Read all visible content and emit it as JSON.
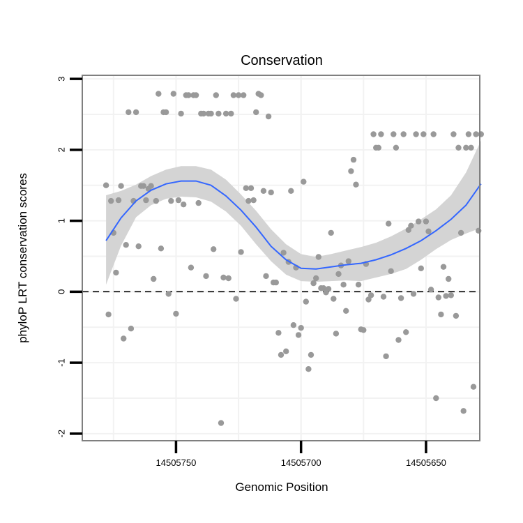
{
  "chart_data": {
    "type": "scatter",
    "title": "Conservation",
    "xlabel": "Genomic Position",
    "ylabel": "phyloP LRT conservation scores",
    "x_reversed": true,
    "xlim": [
      14505787.5,
      14505628.5
    ],
    "ylim": [
      -2.1,
      3.05
    ],
    "x_ticks": [
      14505750,
      14505700,
      14505650
    ],
    "x_tick_labels": [
      "14505750",
      "14505700",
      "14505650"
    ],
    "y_ticks": [
      -2,
      -1,
      0,
      1,
      2,
      3
    ],
    "y_tick_labels": [
      "-2",
      "-1",
      "0",
      "1",
      "2",
      "3"
    ],
    "reference_line": {
      "y": 0,
      "style": "dashed"
    },
    "grid": true,
    "colors": {
      "points": "#999999",
      "smooth_line": "#3366FF",
      "confidence_band": "#D4D4D4",
      "grid": "#F2F2F2",
      "frame": "#7F7F7F",
      "axis_line": "#000000"
    },
    "points": [
      {
        "x": 14505778,
        "y": 1.5
      },
      {
        "x": 14505777,
        "y": -0.32
      },
      {
        "x": 14505776,
        "y": 1.28
      },
      {
        "x": 14505775,
        "y": 0.83
      },
      {
        "x": 14505774,
        "y": 0.27
      },
      {
        "x": 14505773,
        "y": 1.29
      },
      {
        "x": 14505772,
        "y": 1.49
      },
      {
        "x": 14505771,
        "y": -0.66
      },
      {
        "x": 14505770,
        "y": 0.66
      },
      {
        "x": 14505769,
        "y": 2.53
      },
      {
        "x": 14505768,
        "y": -0.52
      },
      {
        "x": 14505767,
        "y": 1.28
      },
      {
        "x": 14505766,
        "y": 2.53
      },
      {
        "x": 14505765,
        "y": 0.64
      },
      {
        "x": 14505764,
        "y": 1.49
      },
      {
        "x": 14505763,
        "y": 1.49
      },
      {
        "x": 14505762,
        "y": 1.29
      },
      {
        "x": 14505761,
        "y": 1.45
      },
      {
        "x": 14505760,
        "y": 1.49
      },
      {
        "x": 14505759,
        "y": 0.18
      },
      {
        "x": 14505758,
        "y": 1.28
      },
      {
        "x": 14505757,
        "y": 2.79
      },
      {
        "x": 14505756,
        "y": 0.61
      },
      {
        "x": 14505755,
        "y": 2.53
      },
      {
        "x": 14505754,
        "y": 2.53
      },
      {
        "x": 14505753,
        "y": -0.03
      },
      {
        "x": 14505752,
        "y": 1.28
      },
      {
        "x": 14505751,
        "y": 2.79
      },
      {
        "x": 14505750,
        "y": -0.31
      },
      {
        "x": 14505749,
        "y": 1.29
      },
      {
        "x": 14505748,
        "y": 2.51
      },
      {
        "x": 14505747,
        "y": 1.23
      },
      {
        "x": 14505746,
        "y": 2.77
      },
      {
        "x": 14505745,
        "y": 2.77
      },
      {
        "x": 14505744,
        "y": 0.34
      },
      {
        "x": 14505743,
        "y": 2.77
      },
      {
        "x": 14505742,
        "y": 2.77
      },
      {
        "x": 14505741,
        "y": 1.25
      },
      {
        "x": 14505740,
        "y": 2.51
      },
      {
        "x": 14505739,
        "y": 2.51
      },
      {
        "x": 14505738,
        "y": 0.22
      },
      {
        "x": 14505737,
        "y": 2.51
      },
      {
        "x": 14505736,
        "y": 2.51
      },
      {
        "x": 14505735,
        "y": 0.6
      },
      {
        "x": 14505734,
        "y": 2.77
      },
      {
        "x": 14505733,
        "y": 2.51
      },
      {
        "x": 14505732,
        "y": -1.85
      },
      {
        "x": 14505731,
        "y": 0.2
      },
      {
        "x": 14505730,
        "y": 2.51
      },
      {
        "x": 14505729,
        "y": 0.19
      },
      {
        "x": 14505728,
        "y": 2.51
      },
      {
        "x": 14505727,
        "y": 2.77
      },
      {
        "x": 14505726,
        "y": -0.1
      },
      {
        "x": 14505725,
        "y": 2.77
      },
      {
        "x": 14505724,
        "y": 0.56
      },
      {
        "x": 14505723,
        "y": 2.77
      },
      {
        "x": 14505722,
        "y": 1.46
      },
      {
        "x": 14505721,
        "y": 1.28
      },
      {
        "x": 14505720,
        "y": 1.46
      },
      {
        "x": 14505719,
        "y": 1.29
      },
      {
        "x": 14505718,
        "y": 2.53
      },
      {
        "x": 14505717,
        "y": 2.79
      },
      {
        "x": 14505716,
        "y": 2.77
      },
      {
        "x": 14505715,
        "y": 1.42
      },
      {
        "x": 14505714,
        "y": 0.22
      },
      {
        "x": 14505713,
        "y": 2.47
      },
      {
        "x": 14505712,
        "y": 1.4
      },
      {
        "x": 14505711,
        "y": 0.13
      },
      {
        "x": 14505710,
        "y": 0.13
      },
      {
        "x": 14505709,
        "y": -0.58
      },
      {
        "x": 14505708,
        "y": -0.89
      },
      {
        "x": 14505707,
        "y": 0.55
      },
      {
        "x": 14505706,
        "y": -0.84
      },
      {
        "x": 14505705,
        "y": 0.42
      },
      {
        "x": 14505704,
        "y": 1.42
      },
      {
        "x": 14505703,
        "y": -0.47
      },
      {
        "x": 14505702,
        "y": 0.34
      },
      {
        "x": 14505701,
        "y": -0.61
      },
      {
        "x": 14505700,
        "y": -0.51
      },
      {
        "x": 14505699,
        "y": 1.55
      },
      {
        "x": 14505698,
        "y": -0.14
      },
      {
        "x": 14505697,
        "y": -1.09
      },
      {
        "x": 14505696,
        "y": -0.89
      },
      {
        "x": 14505695,
        "y": 0.12
      },
      {
        "x": 14505694,
        "y": 0.19
      },
      {
        "x": 14505693,
        "y": 0.49
      },
      {
        "x": 14505692,
        "y": 0.05
      },
      {
        "x": 14505691,
        "y": 0.05
      },
      {
        "x": 14505690,
        "y": -0.01
      },
      {
        "x": 14505689,
        "y": 0.04
      },
      {
        "x": 14505688,
        "y": 0.83
      },
      {
        "x": 14505687,
        "y": -0.1
      },
      {
        "x": 14505686,
        "y": -0.59
      },
      {
        "x": 14505685,
        "y": 0.25
      },
      {
        "x": 14505684,
        "y": 0.37
      },
      {
        "x": 14505683,
        "y": 0.1
      },
      {
        "x": 14505682,
        "y": -0.27
      },
      {
        "x": 14505681,
        "y": 0.43
      },
      {
        "x": 14505680,
        "y": 1.7
      },
      {
        "x": 14505679,
        "y": 1.86
      },
      {
        "x": 14505678,
        "y": 1.51
      },
      {
        "x": 14505677,
        "y": 0.1
      },
      {
        "x": 14505676,
        "y": -0.53
      },
      {
        "x": 14505675,
        "y": -0.54
      },
      {
        "x": 14505674,
        "y": 0.39
      },
      {
        "x": 14505673,
        "y": -0.11
      },
      {
        "x": 14505672,
        "y": -0.05
      },
      {
        "x": 14505671,
        "y": 2.22
      },
      {
        "x": 14505670,
        "y": 2.03
      },
      {
        "x": 14505669,
        "y": 2.03
      },
      {
        "x": 14505668,
        "y": 2.22
      },
      {
        "x": 14505667,
        "y": -0.07
      },
      {
        "x": 14505666,
        "y": -0.91
      },
      {
        "x": 14505665,
        "y": 0.96
      },
      {
        "x": 14505664,
        "y": 0.29
      },
      {
        "x": 14505663,
        "y": 2.22
      },
      {
        "x": 14505662,
        "y": 2.03
      },
      {
        "x": 14505661,
        "y": -0.68
      },
      {
        "x": 14505660,
        "y": -0.09
      },
      {
        "x": 14505659,
        "y": 2.22
      },
      {
        "x": 14505658,
        "y": -0.57
      },
      {
        "x": 14505657,
        "y": 0.87
      },
      {
        "x": 14505656,
        "y": 0.93
      },
      {
        "x": 14505655,
        "y": -0.03
      },
      {
        "x": 14505654,
        "y": 2.22
      },
      {
        "x": 14505653,
        "y": 0.99
      },
      {
        "x": 14505652,
        "y": 0.33
      },
      {
        "x": 14505651,
        "y": 2.22
      },
      {
        "x": 14505650,
        "y": 0.99
      },
      {
        "x": 14505649,
        "y": 0.85
      },
      {
        "x": 14505648,
        "y": 0.03
      },
      {
        "x": 14505647,
        "y": 2.22
      },
      {
        "x": 14505646,
        "y": -1.5
      },
      {
        "x": 14505645,
        "y": -0.08
      },
      {
        "x": 14505644,
        "y": -0.32
      },
      {
        "x": 14505643,
        "y": 0.35
      },
      {
        "x": 14505642,
        "y": -0.06
      },
      {
        "x": 14505641,
        "y": 0.18
      },
      {
        "x": 14505640,
        "y": -0.05
      },
      {
        "x": 14505639,
        "y": 2.22
      },
      {
        "x": 14505638,
        "y": -0.34
      },
      {
        "x": 14505637,
        "y": 2.03
      },
      {
        "x": 14505636,
        "y": 0.83
      },
      {
        "x": 14505635,
        "y": -1.68
      },
      {
        "x": 14505634,
        "y": 2.03
      },
      {
        "x": 14505633,
        "y": 2.22
      },
      {
        "x": 14505632,
        "y": 2.03
      },
      {
        "x": 14505631,
        "y": -1.34
      },
      {
        "x": 14505630,
        "y": 2.22
      },
      {
        "x": 14505629,
        "y": 0.86
      },
      {
        "x": 14505628,
        "y": 2.22
      }
    ],
    "smooth": {
      "x": [
        14505778,
        14505772,
        14505766,
        14505760,
        14505754,
        14505748,
        14505742,
        14505736,
        14505730,
        14505724,
        14505718,
        14505712,
        14505706,
        14505700,
        14505694,
        14505688,
        14505682,
        14505676,
        14505670,
        14505664,
        14505658,
        14505652,
        14505646,
        14505640,
        14505634,
        14505628
      ],
      "y": [
        0.72,
        1.04,
        1.28,
        1.43,
        1.52,
        1.56,
        1.56,
        1.5,
        1.35,
        1.15,
        0.91,
        0.64,
        0.45,
        0.33,
        0.32,
        0.35,
        0.38,
        0.4,
        0.45,
        0.52,
        0.61,
        0.72,
        0.86,
        1.02,
        1.22,
        1.52
      ],
      "lower": [
        0.1,
        0.65,
        1.05,
        1.22,
        1.31,
        1.34,
        1.33,
        1.27,
        1.13,
        0.93,
        0.67,
        0.43,
        0.24,
        0.15,
        0.14,
        0.15,
        0.16,
        0.15,
        0.2,
        0.25,
        0.32,
        0.45,
        0.6,
        0.73,
        0.82,
        0.9
      ],
      "upper": [
        1.36,
        1.42,
        1.51,
        1.63,
        1.72,
        1.77,
        1.77,
        1.72,
        1.58,
        1.37,
        1.14,
        0.88,
        0.67,
        0.53,
        0.49,
        0.53,
        0.58,
        0.63,
        0.69,
        0.78,
        0.89,
        1.02,
        1.16,
        1.36,
        1.68,
        2.13
      ]
    }
  }
}
